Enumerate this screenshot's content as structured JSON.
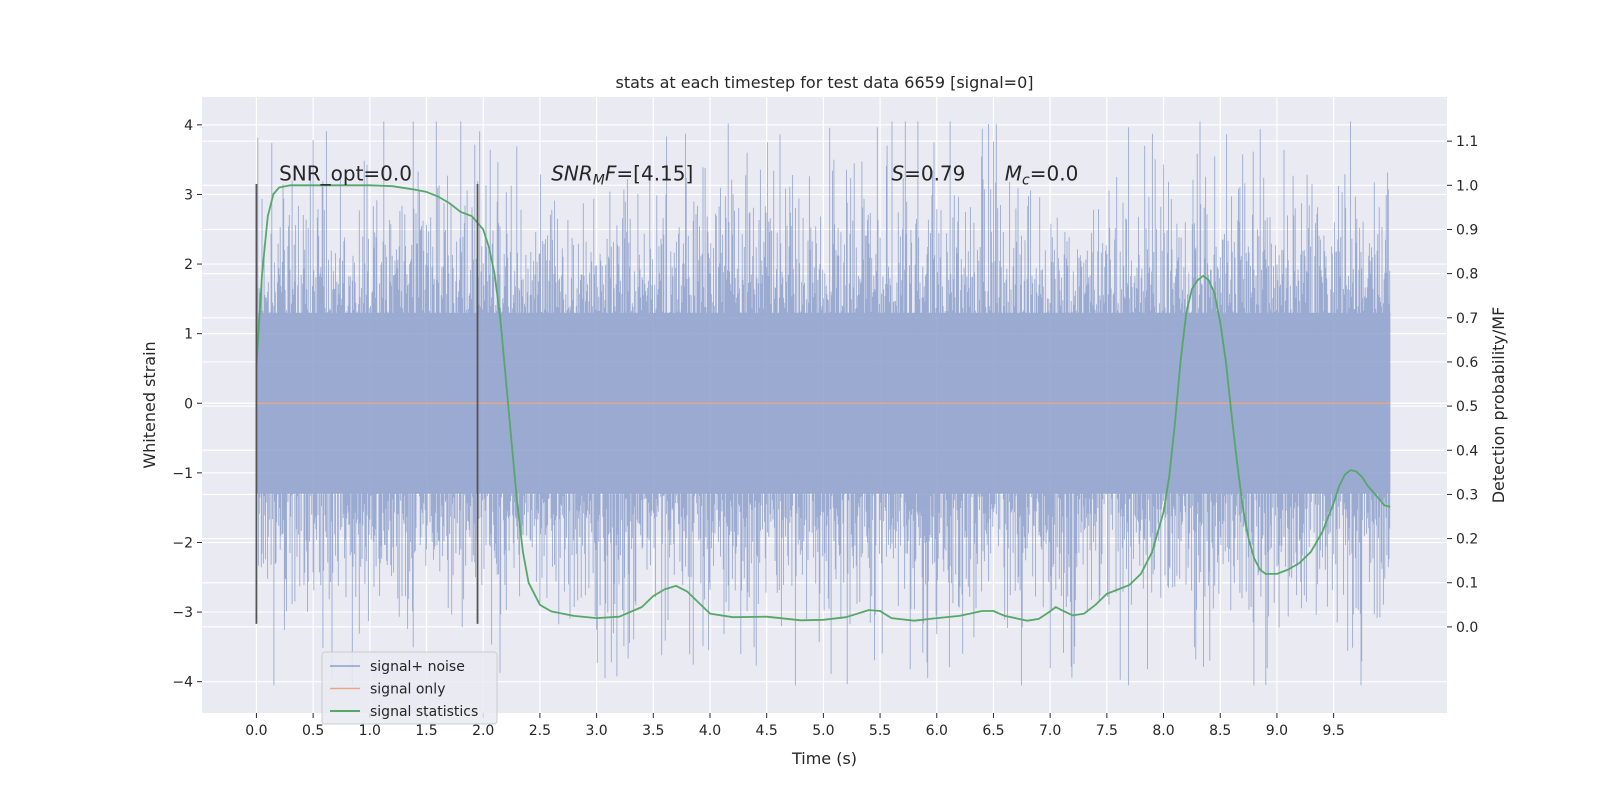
{
  "chart_data": {
    "type": "line",
    "title": "stats at each timestep for test data 6659 [signal=0]",
    "xlabel": "Time (s)",
    "ylabel_left": "Whitened strain",
    "ylabel_right": "Detection probability/MF",
    "xlim": [
      -0.48,
      10.5
    ],
    "ylim_left": [
      -4.45,
      4.4
    ],
    "ylim_right": [
      -0.195,
      1.2
    ],
    "x_ticks": [
      0.0,
      0.5,
      1.0,
      1.5,
      2.0,
      2.5,
      3.0,
      3.5,
      4.0,
      4.5,
      5.0,
      5.5,
      6.0,
      6.5,
      7.0,
      7.5,
      8.0,
      8.5,
      9.0,
      9.5
    ],
    "x_tick_labels": [
      "0.0",
      "0.5",
      "1.0",
      "1.5",
      "2.0",
      "2.5",
      "3.0",
      "3.5",
      "4.0",
      "4.5",
      "5.0",
      "5.5",
      "6.0",
      "6.5",
      "7.0",
      "7.5",
      "8.0",
      "8.5",
      "9.0",
      "9.5"
    ],
    "y_left_ticks": [
      -4,
      -3,
      -2,
      -1,
      0,
      1,
      2,
      3,
      4
    ],
    "y_left_tick_labels": [
      "−4",
      "−3",
      "−2",
      "−1",
      "0",
      "1",
      "2",
      "3",
      "4"
    ],
    "y_right_ticks": [
      0.0,
      0.1,
      0.2,
      0.3,
      0.4,
      0.5,
      0.6,
      0.7,
      0.8,
      0.9,
      1.0,
      1.1
    ],
    "y_right_tick_labels": [
      "0.0",
      "0.1",
      "0.2",
      "0.3",
      "0.4",
      "0.5",
      "0.6",
      "0.7",
      "0.8",
      "0.9",
      "1.0",
      "1.1"
    ],
    "grid": true,
    "legend_position": "lower-left",
    "series": [
      {
        "name": "signal+ noise",
        "axis": "left",
        "color": "#8da0cb",
        "x_range": [
          0.0,
          10.0
        ],
        "bulk_band": [
          -1.3,
          1.3
        ],
        "extremes_approx": [
          -4.05,
          4.05
        ],
        "style": "dense-noise"
      },
      {
        "name": "signal only",
        "axis": "left",
        "color": "#e8a688",
        "x": [
          0.0,
          10.0
        ],
        "y": [
          0.0,
          0.0
        ]
      },
      {
        "name": "signal statistics",
        "axis": "right",
        "color": "#55a868",
        "x": [
          0.0,
          0.05,
          0.1,
          0.15,
          0.2,
          0.3,
          0.5,
          0.8,
          1.0,
          1.2,
          1.4,
          1.5,
          1.6,
          1.7,
          1.8,
          1.9,
          2.0,
          2.05,
          2.1,
          2.15,
          2.2,
          2.25,
          2.3,
          2.35,
          2.4,
          2.5,
          2.6,
          2.8,
          3.0,
          3.2,
          3.4,
          3.5,
          3.6,
          3.7,
          3.8,
          3.9,
          4.0,
          4.2,
          4.5,
          4.8,
          5.0,
          5.2,
          5.4,
          5.5,
          5.6,
          5.8,
          6.0,
          6.2,
          6.4,
          6.5,
          6.6,
          6.8,
          6.9,
          7.0,
          7.05,
          7.1,
          7.2,
          7.3,
          7.4,
          7.5,
          7.6,
          7.7,
          7.8,
          7.9,
          8.0,
          8.05,
          8.1,
          8.15,
          8.2,
          8.25,
          8.3,
          8.35,
          8.4,
          8.45,
          8.5,
          8.55,
          8.6,
          8.65,
          8.7,
          8.75,
          8.8,
          8.85,
          8.9,
          9.0,
          9.1,
          9.2,
          9.3,
          9.4,
          9.5,
          9.55,
          9.6,
          9.65,
          9.7,
          9.75,
          9.8,
          9.85,
          9.9,
          9.95,
          10.0
        ],
        "y": [
          0.59,
          0.8,
          0.93,
          0.98,
          0.995,
          1.0,
          1.0,
          1.0,
          1.0,
          0.998,
          0.99,
          0.985,
          0.975,
          0.96,
          0.94,
          0.93,
          0.9,
          0.86,
          0.8,
          0.7,
          0.56,
          0.42,
          0.28,
          0.17,
          0.1,
          0.05,
          0.035,
          0.025,
          0.02,
          0.023,
          0.045,
          0.07,
          0.085,
          0.093,
          0.08,
          0.055,
          0.03,
          0.022,
          0.023,
          0.015,
          0.016,
          0.022,
          0.038,
          0.036,
          0.02,
          0.014,
          0.02,
          0.025,
          0.036,
          0.036,
          0.025,
          0.014,
          0.018,
          0.035,
          0.045,
          0.038,
          0.026,
          0.03,
          0.05,
          0.075,
          0.085,
          0.095,
          0.12,
          0.17,
          0.26,
          0.34,
          0.46,
          0.6,
          0.71,
          0.765,
          0.785,
          0.795,
          0.785,
          0.755,
          0.69,
          0.6,
          0.48,
          0.37,
          0.27,
          0.2,
          0.155,
          0.13,
          0.12,
          0.12,
          0.13,
          0.145,
          0.17,
          0.215,
          0.28,
          0.32,
          0.345,
          0.355,
          0.352,
          0.34,
          0.32,
          0.305,
          0.29,
          0.275,
          0.272
        ]
      }
    ],
    "vertical_markers": [
      {
        "x": 0.0,
        "y_range": [
          -3.17,
          3.15
        ],
        "color": "#555555"
      },
      {
        "x": 1.95,
        "y_range": [
          -3.17,
          3.15
        ],
        "color": "#555555"
      }
    ],
    "annotations": [
      {
        "parts": [
          {
            "text": "SNR_opt=0.0",
            "italic": false
          }
        ],
        "x": 0.2,
        "y": 3.2
      },
      {
        "parts": [
          {
            "text": "SNR",
            "italic": true
          },
          {
            "text": "M",
            "italic": true,
            "sub": true
          },
          {
            "text": "F",
            "italic": true
          },
          {
            "text": "=[4.15]",
            "italic": false
          }
        ],
        "x": 2.6,
        "y": 3.2
      },
      {
        "parts": [
          {
            "text": "S",
            "italic": true
          },
          {
            "text": "=0.79",
            "italic": false
          }
        ],
        "x": 5.6,
        "y": 3.2
      },
      {
        "parts": [
          {
            "text": "M",
            "italic": true
          },
          {
            "text": "c",
            "italic": true,
            "sub": true
          },
          {
            "text": "=0.0",
            "italic": false
          }
        ],
        "x": 6.6,
        "y": 3.2
      }
    ]
  }
}
